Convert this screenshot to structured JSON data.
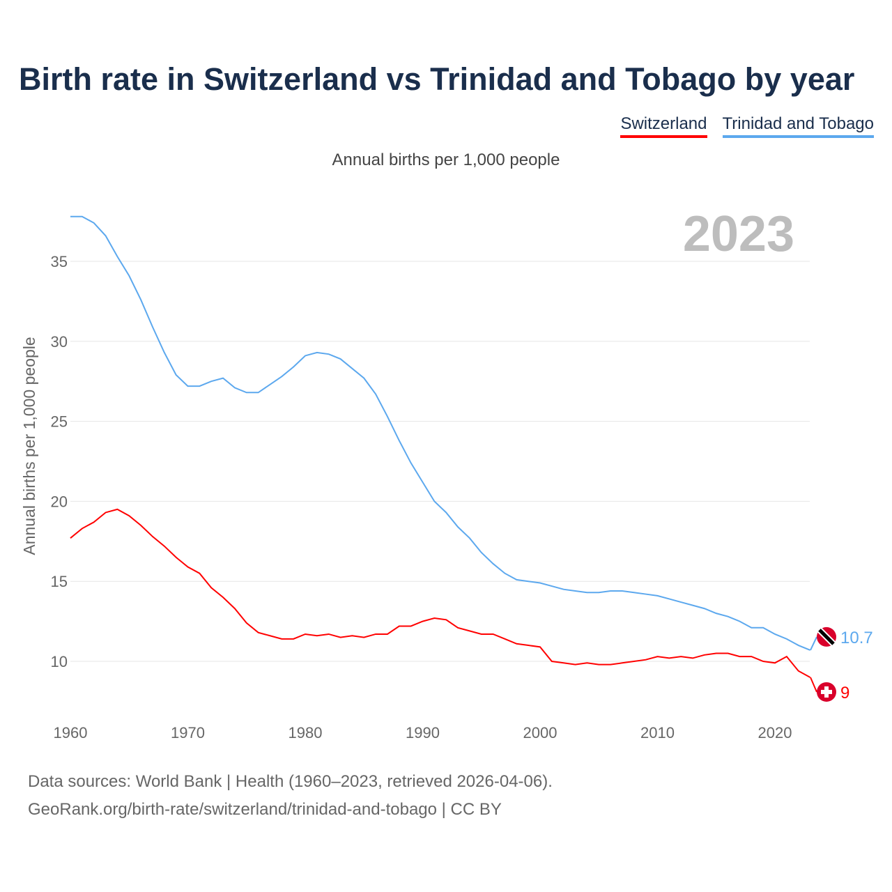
{
  "title": "Birth rate in Switzerland vs Trinidad and Tobago by year",
  "subtitle": "Annual births per 1,000 people",
  "footer": [
    "Data sources: World Bank | Health (1960–2023, retrieved 2026-04-06).",
    "GeoRank.org/birth-rate/switzerland/trinidad-and-tobago | CC BY"
  ],
  "chart_data": {
    "type": "line",
    "title": "Birth rate in Switzerland vs Trinidad and Tobago by year",
    "ylabel": "Annual births per 1,000 people",
    "xlabel": "",
    "year_label": "2023",
    "xlim": [
      1960,
      2023
    ],
    "ylim": [
      7,
      38
    ],
    "xticks": [
      1960,
      1970,
      1980,
      1990,
      2000,
      2010,
      2020
    ],
    "yticks": [
      10,
      15,
      20,
      25,
      30,
      35
    ],
    "legend": "top-right",
    "x_start": 1960,
    "series": [
      {
        "name": "Switzerland",
        "color": "#ff0000",
        "end_label": "9",
        "icon": "swiss-flag-icon",
        "values": [
          17.7,
          18.3,
          18.7,
          19.3,
          19.5,
          19.1,
          18.5,
          17.8,
          17.2,
          16.5,
          15.9,
          15.5,
          14.6,
          14.0,
          13.3,
          12.4,
          11.8,
          11.6,
          11.4,
          11.4,
          11.7,
          11.6,
          11.7,
          11.5,
          11.6,
          11.5,
          11.7,
          11.7,
          12.2,
          12.2,
          12.5,
          12.7,
          12.6,
          12.1,
          11.9,
          11.7,
          11.7,
          11.4,
          11.1,
          11.0,
          10.9,
          10.0,
          9.9,
          9.8,
          9.9,
          9.8,
          9.8,
          9.9,
          10.0,
          10.1,
          10.3,
          10.2,
          10.3,
          10.2,
          10.4,
          10.5,
          10.5,
          10.3,
          10.3,
          10.0,
          9.9,
          10.3,
          9.4,
          9.0
        ]
      },
      {
        "name": "Trinidad and Tobago",
        "color": "#5ca8ee",
        "end_label": "10.7",
        "icon": "trinidad-flag-icon",
        "values": [
          37.8,
          37.8,
          37.4,
          36.6,
          35.3,
          34.1,
          32.6,
          30.9,
          29.3,
          27.9,
          27.2,
          27.2,
          27.5,
          27.7,
          27.1,
          26.8,
          26.8,
          27.3,
          27.8,
          28.4,
          29.1,
          29.3,
          29.2,
          28.9,
          28.3,
          27.7,
          26.7,
          25.3,
          23.8,
          22.4,
          21.2,
          20.0,
          19.3,
          18.4,
          17.7,
          16.8,
          16.1,
          15.5,
          15.1,
          15.0,
          14.9,
          14.7,
          14.5,
          14.4,
          14.3,
          14.3,
          14.4,
          14.4,
          14.3,
          14.2,
          14.1,
          13.9,
          13.7,
          13.5,
          13.3,
          13.0,
          12.8,
          12.5,
          12.1,
          12.1,
          11.7,
          11.4,
          11.0,
          10.7
        ]
      }
    ]
  }
}
